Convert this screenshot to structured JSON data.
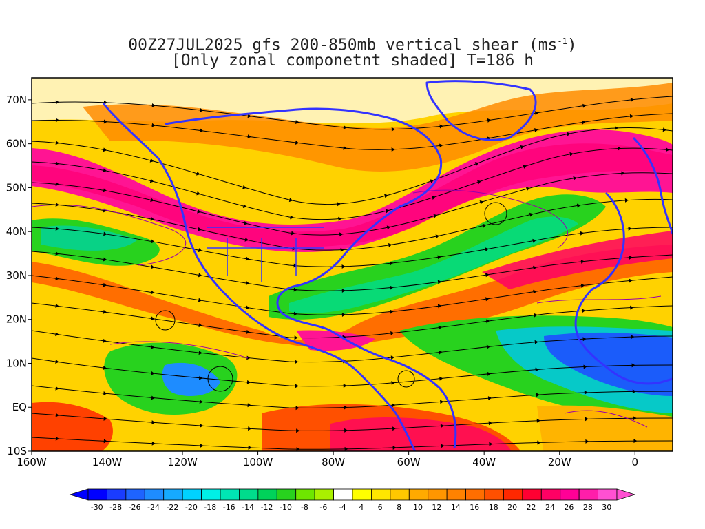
{
  "title": {
    "line1_prefix": "00Z27JUL2025 gfs 200-850mb vertical shear (ms",
    "line1_sup": "-1",
    "line1_suffix": ")",
    "line2": "[Only zonal componetnt shaded] T=186 h"
  },
  "map": {
    "lat_labels": [
      "70N",
      "60N",
      "50N",
      "40N",
      "30N",
      "20N",
      "10N",
      "EQ",
      "10S"
    ],
    "lat_values": [
      70,
      60,
      50,
      40,
      30,
      20,
      10,
      0,
      -10
    ],
    "lon_labels": [
      "160W",
      "140W",
      "120W",
      "100W",
      "80W",
      "60W",
      "40W",
      "20W",
      "0"
    ],
    "lon_values": [
      -160,
      -140,
      -120,
      -100,
      -80,
      -60,
      -40,
      -20,
      0
    ],
    "lon_range": [
      -160,
      10
    ],
    "lat_range": [
      -10,
      75
    ],
    "coastline_color": "#3333ff",
    "streamline_color": "#000000",
    "contour_color": "#9900aa"
  },
  "colorbar": {
    "labels": [
      "-30",
      "-28",
      "-26",
      "-24",
      "-22",
      "-20",
      "-18",
      "-16",
      "-14",
      "-12",
      "-10",
      "-8",
      "-6",
      "-4",
      "4",
      "6",
      "8",
      "10",
      "12",
      "14",
      "16",
      "18",
      "20",
      "22",
      "24",
      "26",
      "28",
      "30"
    ],
    "colors": [
      "#0000ff",
      "#1a3cff",
      "#1e64ff",
      "#1e8cff",
      "#16aaff",
      "#00d2ff",
      "#00f0e6",
      "#00e6b4",
      "#00dc8c",
      "#00d25a",
      "#28d21e",
      "#6ee600",
      "#aaf000",
      "#ffffff",
      "#ffff00",
      "#ffe600",
      "#ffc800",
      "#ffaa00",
      "#ff9600",
      "#ff8200",
      "#ff6e00",
      "#ff5000",
      "#ff2800",
      "#ff0032",
      "#ff0064",
      "#ff0096",
      "#ff1eaa",
      "#ff50d2"
    ],
    "low_color": "#0000ff",
    "high_color": "#ff50d2"
  }
}
